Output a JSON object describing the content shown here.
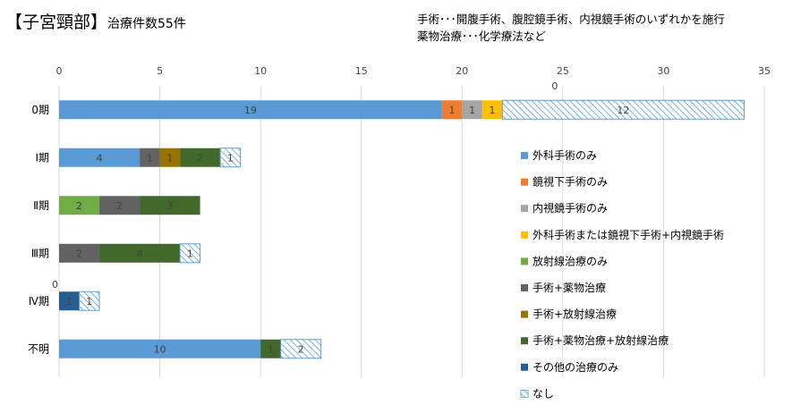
{
  "title": {
    "main": "【子宮頸部】",
    "sub": "治療件数55件"
  },
  "notes": [
    "手術･･･開腹手術、腹腔鏡手術、内視鏡手術のいずれかを施行",
    "薬物治療･･･化学療法など"
  ],
  "chart_data": {
    "type": "bar",
    "orientation": "horizontal",
    "stacked": true,
    "categories": [
      "0期",
      "Ⅰ期",
      "Ⅱ期",
      "Ⅲ期",
      "Ⅳ期",
      "不明"
    ],
    "xlim": [
      0,
      35
    ],
    "xticks": [
      0,
      5,
      10,
      15,
      20,
      25,
      30,
      35
    ],
    "xtick_labels": [
      "0",
      "5",
      "10",
      "15",
      "20",
      "25",
      "30",
      "35"
    ],
    "grid": "vertical",
    "legend_position": "right",
    "series": [
      {
        "name": "外科手術のみ",
        "color": "#5b9bd5",
        "values": [
          19,
          4,
          0,
          0,
          0,
          10
        ]
      },
      {
        "name": "鏡視下手術のみ",
        "color": "#ed7d31",
        "values": [
          1,
          0,
          0,
          0,
          0,
          0
        ]
      },
      {
        "name": "内視鏡手術のみ",
        "color": "#a5a5a5",
        "values": [
          1,
          0,
          0,
          0,
          0,
          0
        ]
      },
      {
        "name": "外科手術または鏡視下手術+内視鏡手術",
        "color": "#ffc000",
        "values": [
          1,
          0,
          0,
          0,
          0,
          0
        ]
      },
      {
        "name": "放射線治療のみ",
        "color": "#70ad47",
        "values": [
          0,
          0,
          2,
          0,
          0,
          0
        ]
      },
      {
        "name": "手術+薬物治療",
        "color": "#636363",
        "values": [
          0,
          1,
          2,
          2,
          0,
          0
        ]
      },
      {
        "name": "手術+放射線治療",
        "color": "#997300",
        "values": [
          0,
          1,
          0,
          0,
          0,
          0
        ]
      },
      {
        "name": "手術+薬物治療+放射線治療",
        "color": "#43682b",
        "values": [
          0,
          2,
          3,
          4,
          0,
          1
        ]
      },
      {
        "name": "その他の治療のみ",
        "color": "#255e91",
        "values": [
          0,
          0,
          0,
          0,
          1,
          0
        ]
      },
      {
        "name": "なし",
        "color": "#5b9bd5",
        "pattern": "hatch",
        "values": [
          12,
          1,
          0,
          1,
          1,
          2
        ]
      }
    ],
    "annotations": [
      {
        "text": "0",
        "near_category": "0期"
      },
      {
        "text": "0",
        "near_category": "Ⅳ期"
      }
    ]
  }
}
